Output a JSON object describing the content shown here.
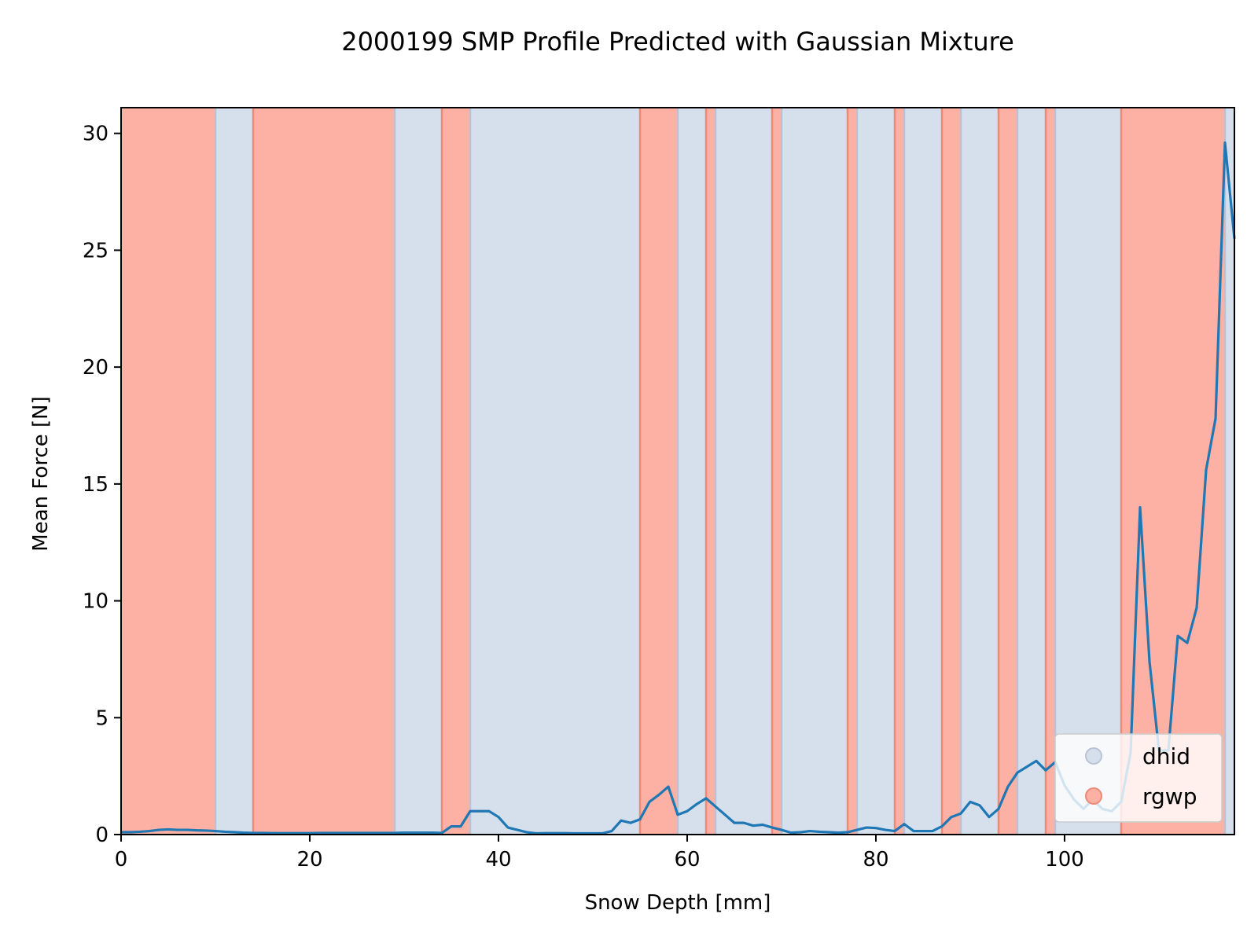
{
  "chart_data": {
    "type": "line",
    "title": "2000199 SMP Profile Predicted with Gaussian Mixture",
    "xlabel": "Snow Depth [mm]",
    "ylabel": "Mean Force [N]",
    "xlim": [
      0,
      118
    ],
    "ylim": [
      0,
      31.1
    ],
    "xticks": [
      0,
      20,
      40,
      60,
      80,
      100
    ],
    "yticks": [
      0,
      5,
      10,
      15,
      20,
      25,
      30
    ],
    "grid": false,
    "legend_placement": "lower-right",
    "classes": [
      {
        "name": "dhid",
        "color": "#d6e0ec"
      },
      {
        "name": "rgwp",
        "color": "#fdb0a4"
      }
    ],
    "background_segments": [
      {
        "start": 0,
        "end": 10,
        "class": "rgwp"
      },
      {
        "start": 10,
        "end": 14,
        "class": "dhid"
      },
      {
        "start": 14,
        "end": 29,
        "class": "rgwp"
      },
      {
        "start": 29,
        "end": 34,
        "class": "dhid"
      },
      {
        "start": 34,
        "end": 37,
        "class": "rgwp"
      },
      {
        "start": 37,
        "end": 55,
        "class": "dhid"
      },
      {
        "start": 55,
        "end": 59,
        "class": "rgwp"
      },
      {
        "start": 59,
        "end": 62,
        "class": "dhid"
      },
      {
        "start": 62,
        "end": 63,
        "class": "rgwp"
      },
      {
        "start": 63,
        "end": 69,
        "class": "dhid"
      },
      {
        "start": 69,
        "end": 70,
        "class": "rgwp"
      },
      {
        "start": 70,
        "end": 77,
        "class": "dhid"
      },
      {
        "start": 77,
        "end": 78,
        "class": "rgwp"
      },
      {
        "start": 78,
        "end": 82,
        "class": "dhid"
      },
      {
        "start": 82,
        "end": 83,
        "class": "rgwp"
      },
      {
        "start": 83,
        "end": 87,
        "class": "dhid"
      },
      {
        "start": 87,
        "end": 89,
        "class": "rgwp"
      },
      {
        "start": 89,
        "end": 93,
        "class": "dhid"
      },
      {
        "start": 93,
        "end": 95,
        "class": "rgwp"
      },
      {
        "start": 95,
        "end": 98,
        "class": "dhid"
      },
      {
        "start": 98,
        "end": 99,
        "class": "rgwp"
      },
      {
        "start": 99,
        "end": 106,
        "class": "dhid"
      },
      {
        "start": 106,
        "end": 117,
        "class": "rgwp"
      },
      {
        "start": 117,
        "end": 118,
        "class": "dhid"
      }
    ],
    "series": [
      {
        "color": "#1f77b4",
        "x": [
          0,
          1,
          2,
          3,
          4,
          5,
          6,
          7,
          8,
          9,
          10,
          11,
          12,
          13,
          14,
          15,
          16,
          17,
          18,
          19,
          20,
          21,
          22,
          23,
          24,
          25,
          26,
          27,
          28,
          29,
          30,
          31,
          32,
          33,
          34,
          35,
          36,
          37,
          38,
          39,
          40,
          41,
          42,
          43,
          44,
          45,
          46,
          47,
          48,
          49,
          50,
          51,
          52,
          53,
          54,
          55,
          56,
          57,
          58,
          59,
          60,
          61,
          62,
          63,
          64,
          65,
          66,
          67,
          68,
          69,
          70,
          71,
          72,
          73,
          74,
          75,
          76,
          77,
          78,
          79,
          80,
          81,
          82,
          83,
          84,
          85,
          86,
          87,
          88,
          89,
          90,
          91,
          92,
          93,
          94,
          95,
          96,
          97,
          98,
          99,
          100,
          101,
          102,
          103,
          104,
          105,
          106,
          107,
          108,
          109,
          110,
          111,
          112,
          113,
          114,
          115,
          116,
          117,
          118
        ],
        "y": [
          0.1,
          0.1,
          0.12,
          0.15,
          0.2,
          0.22,
          0.2,
          0.2,
          0.18,
          0.17,
          0.15,
          0.12,
          0.1,
          0.08,
          0.07,
          0.07,
          0.06,
          0.06,
          0.06,
          0.06,
          0.06,
          0.07,
          0.07,
          0.07,
          0.07,
          0.07,
          0.07,
          0.07,
          0.07,
          0.07,
          0.08,
          0.08,
          0.08,
          0.08,
          0.07,
          0.35,
          0.35,
          1.0,
          1.0,
          1.0,
          0.75,
          0.3,
          0.2,
          0.1,
          0.05,
          0.06,
          0.06,
          0.06,
          0.05,
          0.05,
          0.05,
          0.05,
          0.15,
          0.6,
          0.5,
          0.65,
          1.4,
          1.7,
          2.05,
          0.85,
          1.0,
          1.3,
          1.55,
          1.2,
          0.85,
          0.5,
          0.5,
          0.38,
          0.42,
          0.3,
          0.2,
          0.08,
          0.1,
          0.15,
          0.12,
          0.1,
          0.08,
          0.1,
          0.2,
          0.3,
          0.28,
          0.2,
          0.15,
          0.45,
          0.15,
          0.15,
          0.15,
          0.35,
          0.75,
          0.9,
          1.4,
          1.25,
          0.75,
          1.1,
          2.05,
          2.65,
          2.9,
          3.15,
          2.75,
          3.1,
          2.1,
          1.5,
          1.1,
          1.5,
          1.1,
          1.0,
          1.4,
          3.5,
          14.0,
          7.4,
          3.6,
          3.6,
          8.5,
          8.2,
          9.7,
          15.6,
          17.8,
          29.6,
          25.5
        ]
      }
    ]
  }
}
